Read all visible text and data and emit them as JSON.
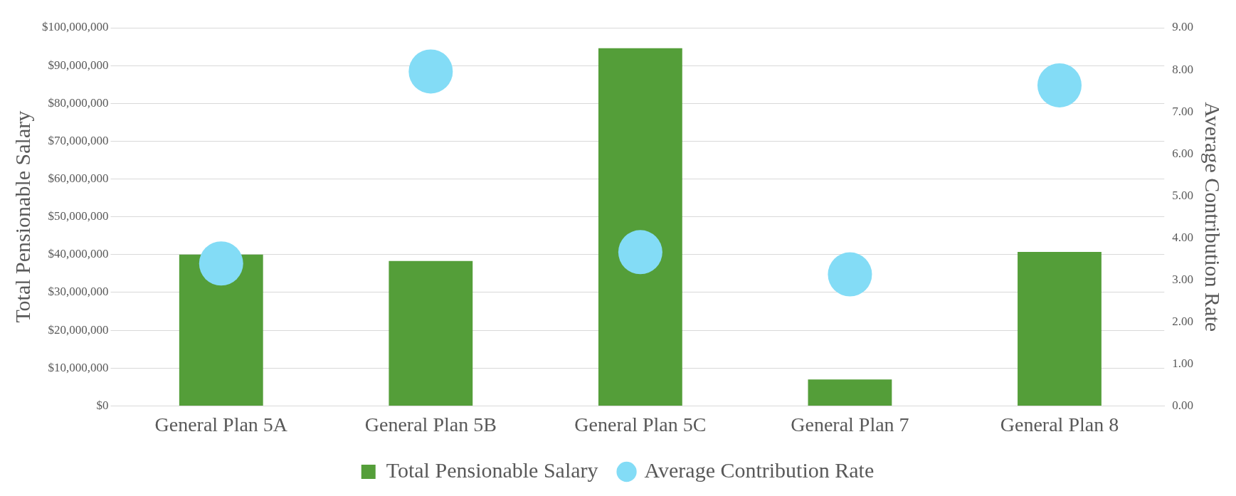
{
  "chart_data": {
    "type": "bar",
    "categories": [
      "General Plan 5A",
      "General Plan 5B",
      "General Plan 5C",
      "General Plan 7",
      "General Plan 8"
    ],
    "series": [
      {
        "name": "Total Pensionable Salary",
        "color": "#549e39",
        "values": [
          40000000,
          38300000,
          94600000,
          7000000,
          40700000
        ]
      },
      {
        "name": "Average Contribution Rate",
        "type": "scatter",
        "axis": "y2",
        "color": "#83dcf6",
        "values": [
          3.39,
          7.96,
          3.66,
          3.13,
          7.63
        ]
      }
    ],
    "ylabel": "Total Pensionable Salary",
    "y2label": "Average Contribution Rate",
    "ylim": [
      0,
      100000000
    ],
    "yticks": [
      {
        "value": 0,
        "label": "$0"
      },
      {
        "value": 10000000,
        "label": "$10,000,000"
      },
      {
        "value": 20000000,
        "label": "$20,000,000"
      },
      {
        "value": 30000000,
        "label": "$30,000,000"
      },
      {
        "value": 40000000,
        "label": "$40,000,000"
      },
      {
        "value": 50000000,
        "label": "$50,000,000"
      },
      {
        "value": 60000000,
        "label": "$60,000,000"
      },
      {
        "value": 70000000,
        "label": "$70,000,000"
      },
      {
        "value": 80000000,
        "label": "$80,000,000"
      },
      {
        "value": 90000000,
        "label": "$90,000,000"
      },
      {
        "value": 100000000,
        "label": "$100,000,000"
      }
    ],
    "y2lim": [
      0,
      9
    ],
    "y2ticks": [
      {
        "value": 0,
        "label": "0.00"
      },
      {
        "value": 1,
        "label": "1.00"
      },
      {
        "value": 2,
        "label": "2.00"
      },
      {
        "value": 3,
        "label": "3.00"
      },
      {
        "value": 4,
        "label": "4.00"
      },
      {
        "value": 5,
        "label": "5.00"
      },
      {
        "value": 6,
        "label": "6.00"
      },
      {
        "value": 7,
        "label": "7.00"
      },
      {
        "value": 8,
        "label": "8.00"
      },
      {
        "value": 9,
        "label": "9.00"
      }
    ],
    "grid": "y",
    "legend": "bottom",
    "marker": "circle"
  }
}
